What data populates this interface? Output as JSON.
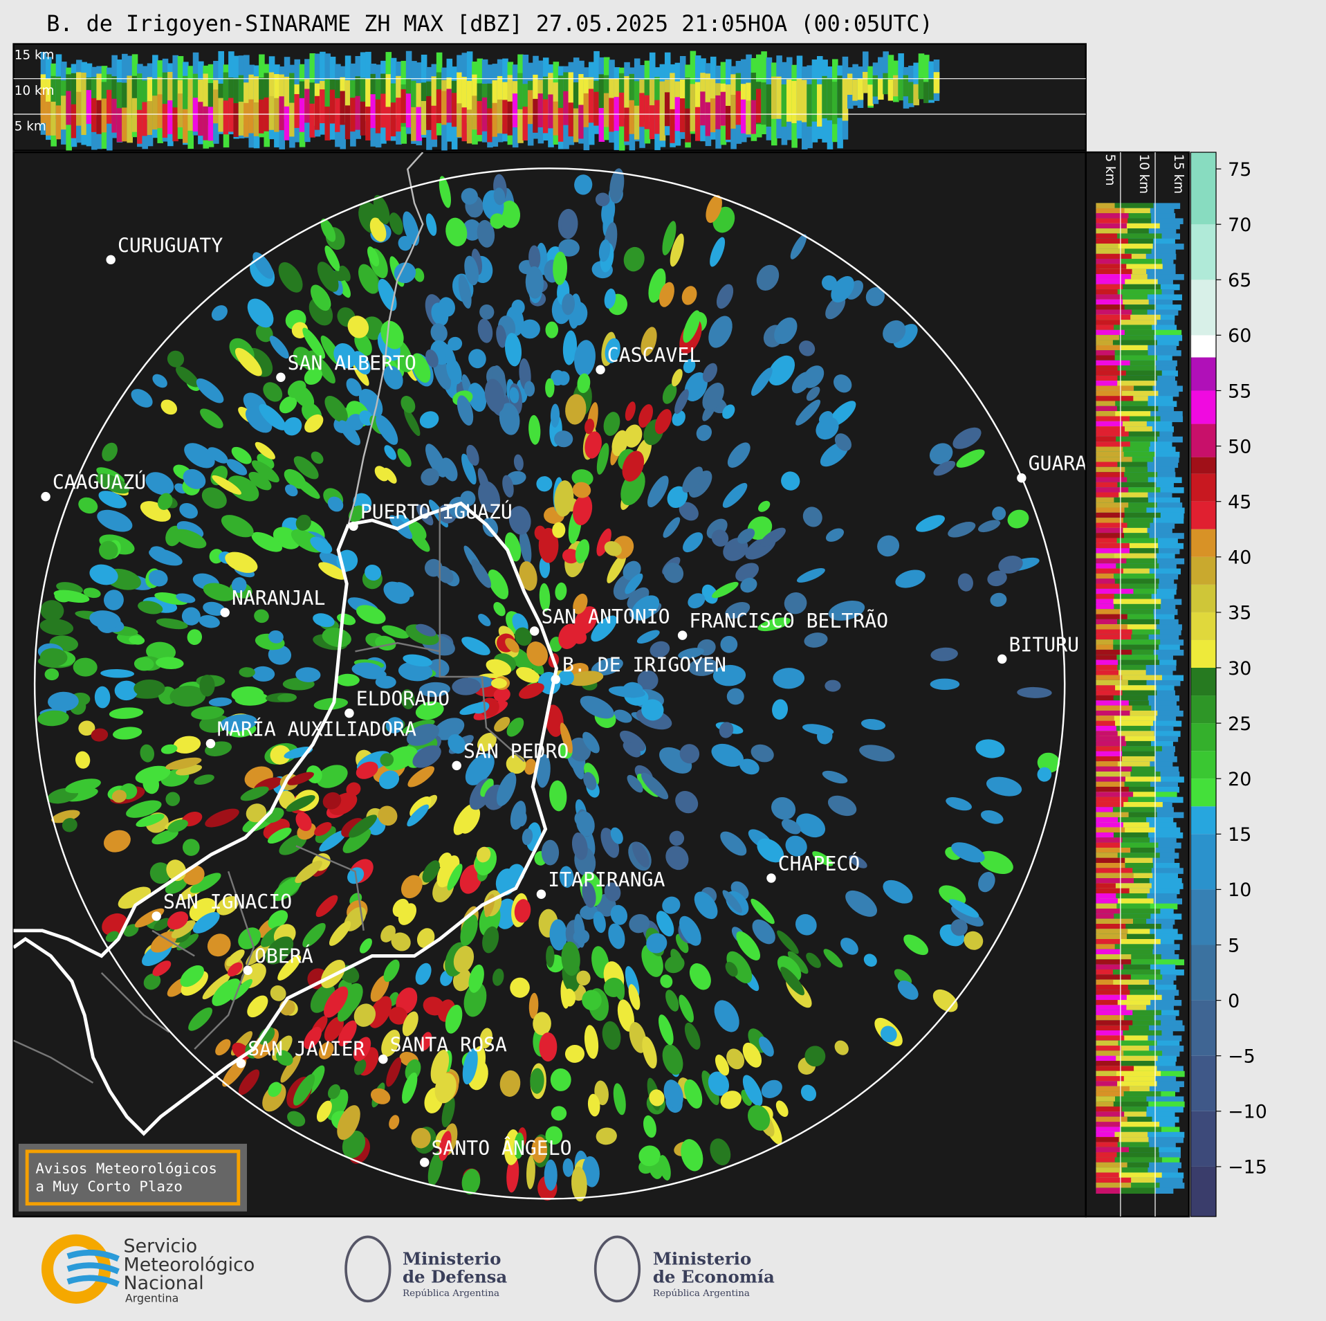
{
  "title": "B. de Irigoyen-SINARAME ZH MAX [dBZ] 27.05.2025 21:05HOA (00:05UTC)",
  "top_panel": {
    "labels": [
      "15 km",
      "10 km",
      "5 km"
    ]
  },
  "side_panel": {
    "labels": [
      "5 km",
      "10 km",
      "15 km"
    ]
  },
  "cities": [
    "CURUGUATY",
    "SAN ALBERTO",
    "CASCAVEL",
    "CAAGUAZÚ",
    "GUARA",
    "PUERTO IGUAZÚ",
    "NARANJAL",
    "SAN ANTONIO",
    "FRANCISCO BELTRÃO",
    "BITURU",
    "B. DE IRIGOYEN",
    "ELDORADO",
    "MARÍA AUXILIADORA",
    "SAN PEDRO",
    "CHAPECÓ",
    "ITAPIRANGA",
    "SAN IGNACIO",
    "OBERÁ",
    "SAN JAVIER",
    "SANTA ROSA",
    "SANTO ÂNGELO"
  ],
  "colorbar": {
    "lim": [
      -19.5,
      76.5
    ],
    "ticks": [
      75,
      70,
      65,
      60,
      55,
      50,
      45,
      40,
      35,
      30,
      25,
      20,
      15,
      10,
      5,
      0,
      {
        "value": -5,
        "label": "−5"
      },
      {
        "value": -10,
        "label": "−10"
      },
      {
        "value": -15,
        "label": "−15"
      }
    ],
    "stops": [
      {
        "value": -19.5,
        "color": "#3a3d6b"
      },
      {
        "value": -15,
        "color": "#3d4a7a"
      },
      {
        "value": -10,
        "color": "#3f5888"
      },
      {
        "value": -5,
        "color": "#3f6593"
      },
      {
        "value": 0,
        "color": "#3b72a0"
      },
      {
        "value": 5,
        "color": "#3680b4"
      },
      {
        "value": 10,
        "color": "#2b92cc"
      },
      {
        "value": 15,
        "color": "#27a6de"
      },
      {
        "value": 17.5,
        "color": "#44e03a"
      },
      {
        "value": 20,
        "color": "#3ac732"
      },
      {
        "value": 22.5,
        "color": "#34b02c"
      },
      {
        "value": 25,
        "color": "#2e9627"
      },
      {
        "value": 27.5,
        "color": "#267a20"
      },
      {
        "value": 30,
        "color": "#eeea3a"
      },
      {
        "value": 32.5,
        "color": "#e0d83c"
      },
      {
        "value": 35,
        "color": "#cfc638"
      },
      {
        "value": 37.5,
        "color": "#c9a92e"
      },
      {
        "value": 40,
        "color": "#d89226"
      },
      {
        "value": 42.5,
        "color": "#e02030"
      },
      {
        "value": 45,
        "color": "#c81820"
      },
      {
        "value": 47.5,
        "color": "#a01018"
      },
      {
        "value": 49,
        "color": "#c8106a"
      },
      {
        "value": 52,
        "color": "#f00ae0"
      },
      {
        "value": 55,
        "color": "#b010b8"
      },
      {
        "value": 58,
        "color": "#ffffff"
      },
      {
        "value": 60,
        "color": "#d8f0e8"
      },
      {
        "value": 65,
        "color": "#b0ead8"
      },
      {
        "value": 70,
        "color": "#88dcc0"
      }
    ]
  },
  "warning_box": {
    "lines": [
      "Avisos Meteorológicos",
      "a Muy Corto Plazo"
    ]
  },
  "logos": {
    "smn": [
      "Servicio",
      "Meteorológico",
      "Nacional",
      "Argentina"
    ],
    "defensa": [
      "Ministerio",
      "de Defensa",
      "República Argentina"
    ],
    "economia": [
      "Ministerio",
      "de Economía",
      "República Argentina"
    ]
  }
}
